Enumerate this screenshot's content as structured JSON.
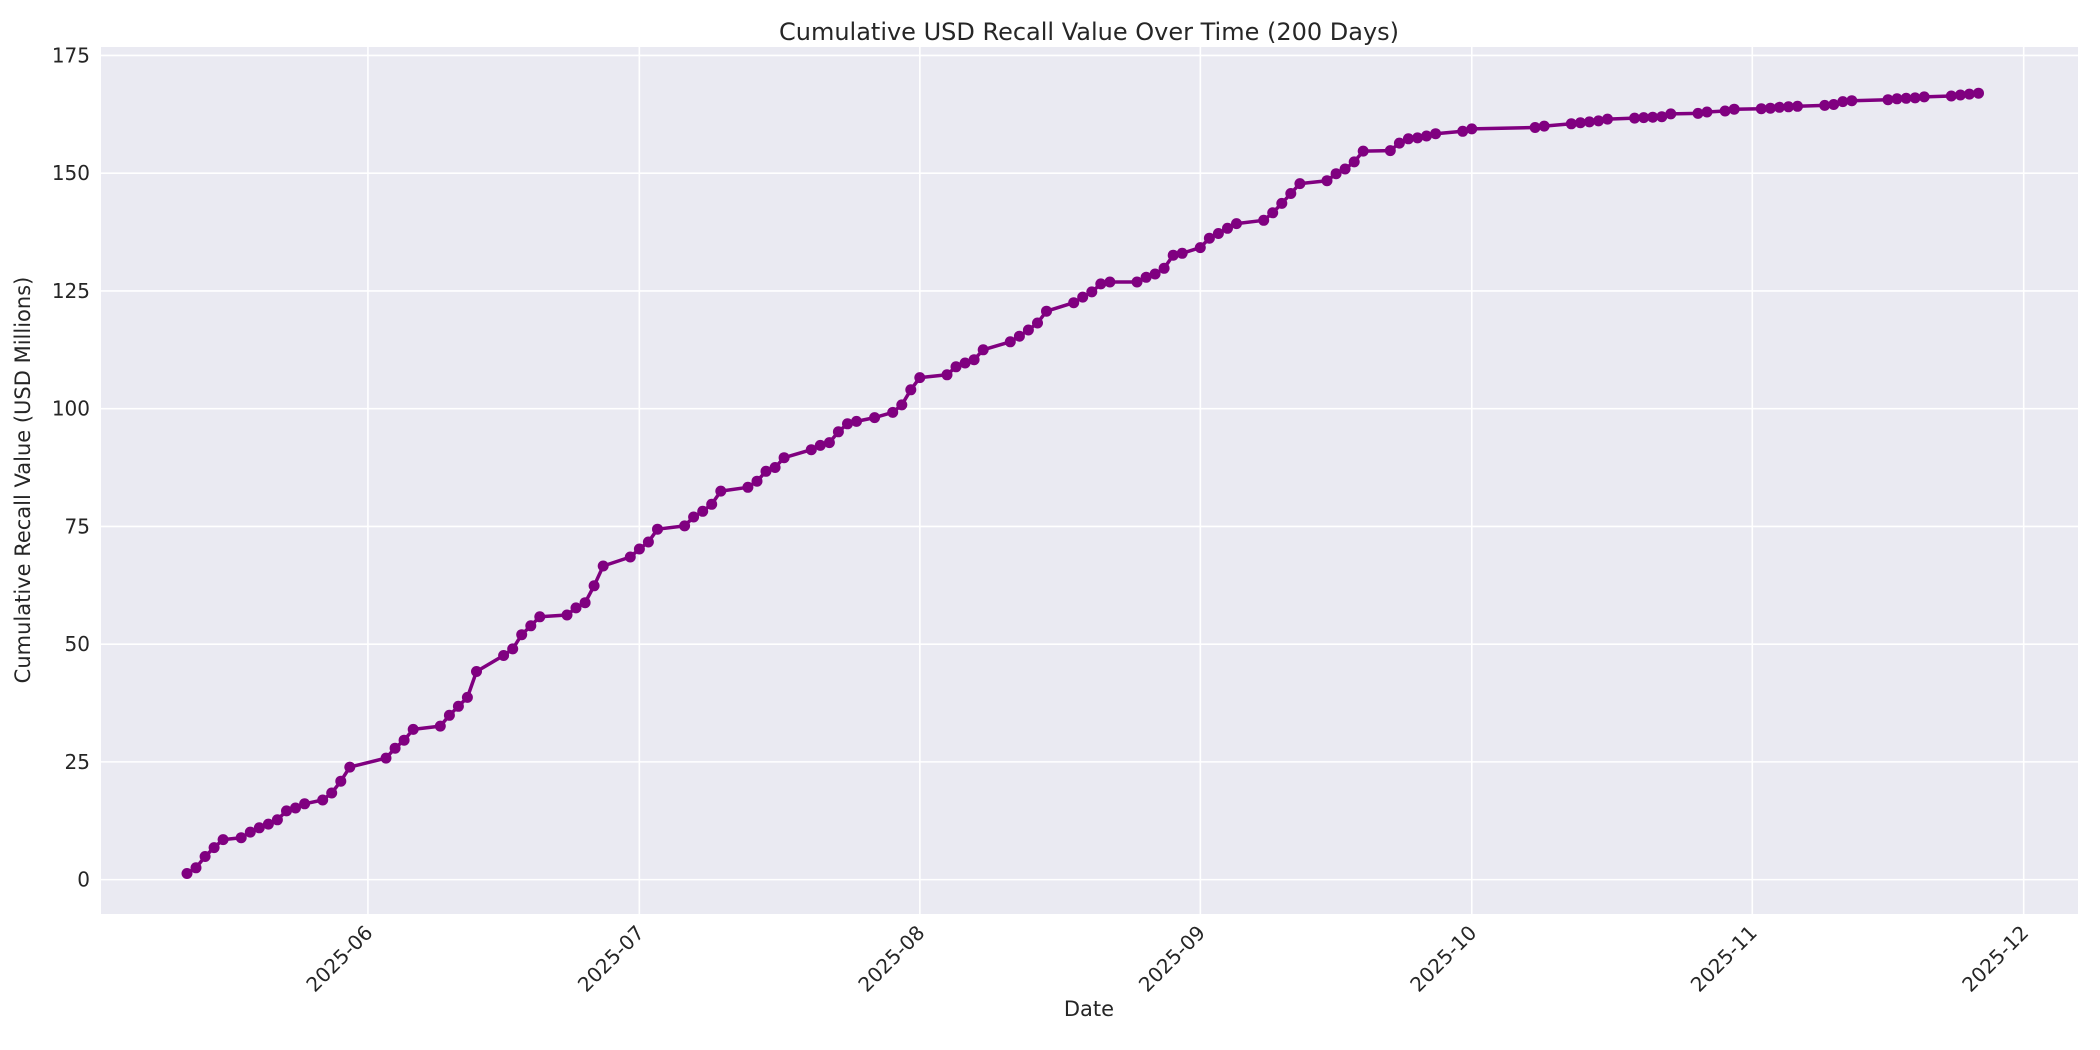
{
  "figure": {
    "title": "Cumulative USD Recall Value Over Time (200 Days)",
    "xlabel": "Date",
    "ylabel": "Cumulative Recall Value (USD Millions)"
  },
  "colors": {
    "line": "#800080",
    "plot_background": "#EAEAF2",
    "figure_background": "#FFFFFF",
    "grid": "#FFFFFF",
    "text": "#262626"
  },
  "chart_data": {
    "type": "line",
    "title": "Cumulative USD Recall Value Over Time (200 Days)",
    "xlabel": "Date",
    "ylabel": "Cumulative Recall Value (USD Millions)",
    "legend": false,
    "grid": true,
    "marker": "circle",
    "line_color": "#800080",
    "y_ticks": [
      0,
      25,
      50,
      75,
      100,
      125,
      150,
      175
    ],
    "ylim": [
      -7.3,
      176.8
    ],
    "xlim": [
      "2025-05-02",
      "2025-12-07"
    ],
    "x_ticks": [
      {
        "date": "2025-06-01",
        "label": "2025-06"
      },
      {
        "date": "2025-07-01",
        "label": "2025-07"
      },
      {
        "date": "2025-08-01",
        "label": "2025-08"
      },
      {
        "date": "2025-09-01",
        "label": "2025-09"
      },
      {
        "date": "2025-10-01",
        "label": "2025-10"
      },
      {
        "date": "2025-11-01",
        "label": "2025-11"
      },
      {
        "date": "2025-12-01",
        "label": "2025-12"
      }
    ],
    "series": [
      {
        "name": "Cumulative Recall Value",
        "points": [
          [
            "2025-05-12",
            1.3
          ],
          [
            "2025-05-13",
            2.5
          ],
          [
            "2025-05-14",
            4.9
          ],
          [
            "2025-05-15",
            6.8
          ],
          [
            "2025-05-16",
            8.5
          ],
          [
            "2025-05-18",
            8.9
          ],
          [
            "2025-05-19",
            10.1
          ],
          [
            "2025-05-20",
            11.0
          ],
          [
            "2025-05-21",
            11.8
          ],
          [
            "2025-05-22",
            12.7
          ],
          [
            "2025-05-23",
            14.6
          ],
          [
            "2025-05-24",
            15.2
          ],
          [
            "2025-05-25",
            16.1
          ],
          [
            "2025-05-27",
            16.9
          ],
          [
            "2025-05-28",
            18.4
          ],
          [
            "2025-05-29",
            20.9
          ],
          [
            "2025-05-30",
            23.9
          ],
          [
            "2025-06-03",
            25.8
          ],
          [
            "2025-06-04",
            27.9
          ],
          [
            "2025-06-05",
            29.6
          ],
          [
            "2025-06-06",
            31.9
          ],
          [
            "2025-06-09",
            32.6
          ],
          [
            "2025-06-10",
            34.9
          ],
          [
            "2025-06-11",
            36.8
          ],
          [
            "2025-06-12",
            38.7
          ],
          [
            "2025-06-13",
            44.2
          ],
          [
            "2025-06-16",
            47.6
          ],
          [
            "2025-06-17",
            49.0
          ],
          [
            "2025-06-18",
            52.0
          ],
          [
            "2025-06-19",
            53.9
          ],
          [
            "2025-06-20",
            55.8
          ],
          [
            "2025-06-23",
            56.2
          ],
          [
            "2025-06-24",
            57.7
          ],
          [
            "2025-06-25",
            58.8
          ],
          [
            "2025-06-26",
            62.4
          ],
          [
            "2025-06-27",
            66.6
          ],
          [
            "2025-06-30",
            68.5
          ],
          [
            "2025-07-01",
            70.2
          ],
          [
            "2025-07-02",
            71.7
          ],
          [
            "2025-07-03",
            74.4
          ],
          [
            "2025-07-06",
            75.1
          ],
          [
            "2025-07-07",
            77.0
          ],
          [
            "2025-07-08",
            78.2
          ],
          [
            "2025-07-09",
            79.7
          ],
          [
            "2025-07-10",
            82.5
          ],
          [
            "2025-07-13",
            83.3
          ],
          [
            "2025-07-14",
            84.6
          ],
          [
            "2025-07-15",
            86.7
          ],
          [
            "2025-07-16",
            87.5
          ],
          [
            "2025-07-17",
            89.6
          ],
          [
            "2025-07-20",
            91.3
          ],
          [
            "2025-07-21",
            92.2
          ],
          [
            "2025-07-22",
            92.8
          ],
          [
            "2025-07-23",
            95.1
          ],
          [
            "2025-07-24",
            96.8
          ],
          [
            "2025-07-25",
            97.3
          ],
          [
            "2025-07-27",
            98.1
          ],
          [
            "2025-07-29",
            99.2
          ],
          [
            "2025-07-30",
            100.8
          ],
          [
            "2025-07-31",
            104.0
          ],
          [
            "2025-08-01",
            106.6
          ],
          [
            "2025-08-04",
            107.2
          ],
          [
            "2025-08-05",
            108.9
          ],
          [
            "2025-08-06",
            109.7
          ],
          [
            "2025-08-07",
            110.4
          ],
          [
            "2025-08-08",
            112.5
          ],
          [
            "2025-08-11",
            114.2
          ],
          [
            "2025-08-12",
            115.4
          ],
          [
            "2025-08-13",
            116.7
          ],
          [
            "2025-08-14",
            118.2
          ],
          [
            "2025-08-15",
            120.7
          ],
          [
            "2025-08-18",
            122.5
          ],
          [
            "2025-08-19",
            123.7
          ],
          [
            "2025-08-20",
            124.8
          ],
          [
            "2025-08-21",
            126.5
          ],
          [
            "2025-08-22",
            126.9
          ],
          [
            "2025-08-25",
            126.9
          ],
          [
            "2025-08-26",
            127.9
          ],
          [
            "2025-08-27",
            128.6
          ],
          [
            "2025-08-28",
            129.8
          ],
          [
            "2025-08-29",
            132.6
          ],
          [
            "2025-08-30",
            133.0
          ],
          [
            "2025-09-01",
            134.2
          ],
          [
            "2025-09-02",
            136.2
          ],
          [
            "2025-09-03",
            137.2
          ],
          [
            "2025-09-04",
            138.3
          ],
          [
            "2025-09-05",
            139.3
          ],
          [
            "2025-09-08",
            140.0
          ],
          [
            "2025-09-09",
            141.6
          ],
          [
            "2025-09-10",
            143.6
          ],
          [
            "2025-09-11",
            145.7
          ],
          [
            "2025-09-12",
            147.8
          ],
          [
            "2025-09-15",
            148.4
          ],
          [
            "2025-09-16",
            149.9
          ],
          [
            "2025-09-17",
            150.9
          ],
          [
            "2025-09-18",
            152.4
          ],
          [
            "2025-09-19",
            154.7
          ],
          [
            "2025-09-22",
            154.8
          ],
          [
            "2025-09-23",
            156.4
          ],
          [
            "2025-09-24",
            157.3
          ],
          [
            "2025-09-25",
            157.5
          ],
          [
            "2025-09-26",
            157.9
          ],
          [
            "2025-09-27",
            158.4
          ],
          [
            "2025-09-30",
            158.9
          ],
          [
            "2025-10-01",
            159.4
          ],
          [
            "2025-10-08",
            159.7
          ],
          [
            "2025-10-09",
            160.0
          ],
          [
            "2025-10-12",
            160.5
          ],
          [
            "2025-10-13",
            160.7
          ],
          [
            "2025-10-14",
            160.9
          ],
          [
            "2025-10-15",
            161.1
          ],
          [
            "2025-10-16",
            161.5
          ],
          [
            "2025-10-19",
            161.7
          ],
          [
            "2025-10-20",
            161.8
          ],
          [
            "2025-10-21",
            161.9
          ],
          [
            "2025-10-22",
            162.0
          ],
          [
            "2025-10-23",
            162.6
          ],
          [
            "2025-10-26",
            162.7
          ],
          [
            "2025-10-27",
            163.0
          ],
          [
            "2025-10-29",
            163.2
          ],
          [
            "2025-10-30",
            163.6
          ],
          [
            "2025-11-02",
            163.7
          ],
          [
            "2025-11-03",
            163.8
          ],
          [
            "2025-11-04",
            164.0
          ],
          [
            "2025-11-05",
            164.1
          ],
          [
            "2025-11-06",
            164.2
          ],
          [
            "2025-11-09",
            164.4
          ],
          [
            "2025-11-10",
            164.6
          ],
          [
            "2025-11-11",
            165.2
          ],
          [
            "2025-11-12",
            165.4
          ],
          [
            "2025-11-16",
            165.6
          ],
          [
            "2025-11-17",
            165.8
          ],
          [
            "2025-11-18",
            165.9
          ],
          [
            "2025-11-19",
            166.0
          ],
          [
            "2025-11-20",
            166.2
          ],
          [
            "2025-11-23",
            166.4
          ],
          [
            "2025-11-24",
            166.6
          ],
          [
            "2025-11-25",
            166.8
          ],
          [
            "2025-11-26",
            167.0
          ]
        ]
      }
    ]
  }
}
